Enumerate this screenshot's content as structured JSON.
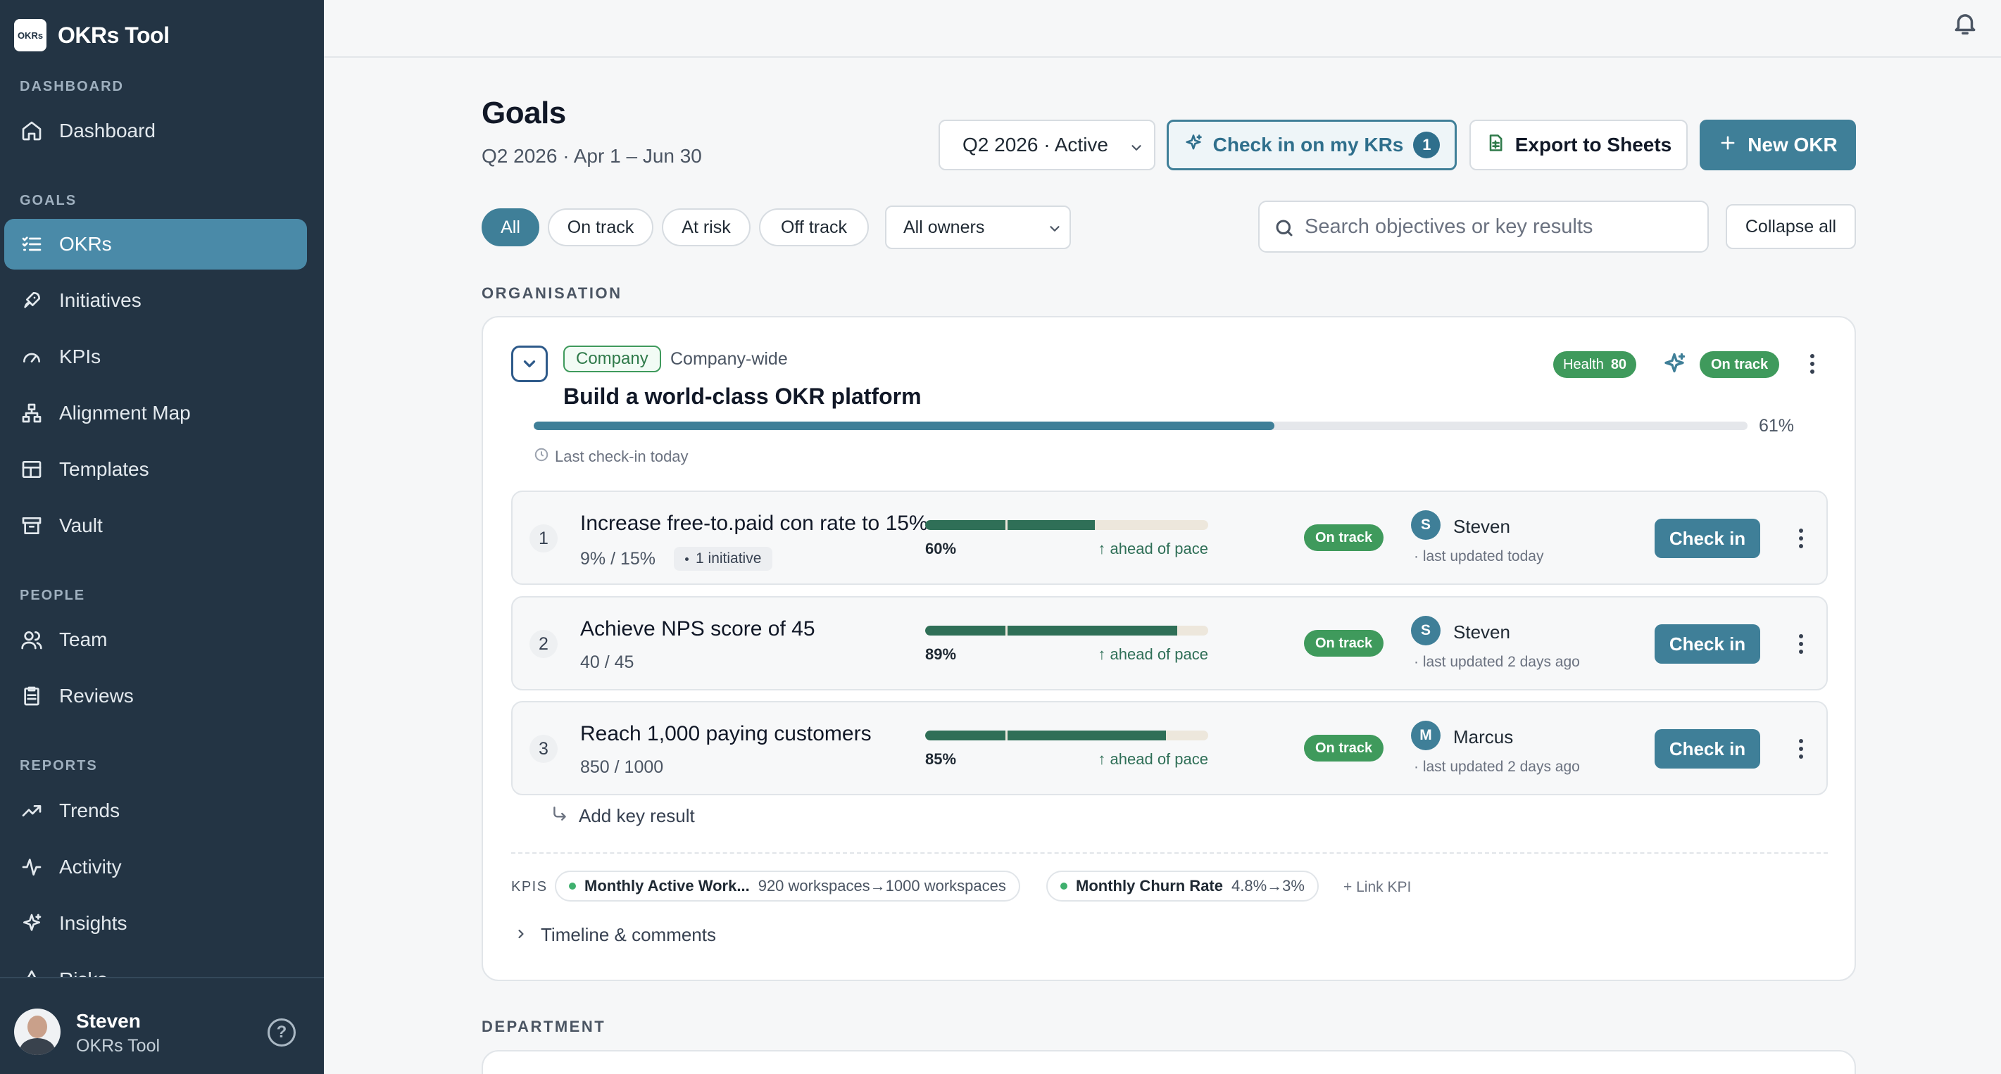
{
  "app": {
    "name": "OKRs Tool",
    "logo_text": "OKRs"
  },
  "sidebar": {
    "sections": [
      {
        "label": "DASHBOARD"
      },
      {
        "label": "GOALS"
      },
      {
        "label": "PEOPLE"
      },
      {
        "label": "REPORTS"
      }
    ],
    "items": [
      {
        "label": "Dashboard",
        "icon": "home-icon"
      },
      {
        "label": "OKRs",
        "icon": "list-icon",
        "active": true
      },
      {
        "label": "Initiatives",
        "icon": "rocket-icon"
      },
      {
        "label": "KPIs",
        "icon": "gauge-icon"
      },
      {
        "label": "Alignment Map",
        "icon": "hierarchy-icon"
      },
      {
        "label": "Templates",
        "icon": "template-icon"
      },
      {
        "label": "Vault",
        "icon": "archive-icon"
      },
      {
        "label": "Team",
        "icon": "team-icon"
      },
      {
        "label": "Reviews",
        "icon": "clipboard-icon"
      },
      {
        "label": "Trends",
        "icon": "trend-icon"
      },
      {
        "label": "Activity",
        "icon": "activity-icon"
      },
      {
        "label": "Insights",
        "icon": "sparkle-icon"
      },
      {
        "label": "Risks",
        "icon": "warning-icon"
      }
    ],
    "user": {
      "name": "Steven",
      "org": "OKRs Tool"
    }
  },
  "header": {
    "title": "Goals",
    "subtitle": "Q2 2026 · Apr 1 – Jun 30",
    "period": "Q2 2026 · Active",
    "checkin_label": "Check in on my KRs",
    "checkin_count": "1",
    "export_label": "Export to Sheets",
    "new_okr_label": "New OKR"
  },
  "filters": {
    "pills": [
      "All",
      "On track",
      "At risk",
      "Off track"
    ],
    "active": "All",
    "owners": "All owners",
    "search_placeholder": "Search objectives or key results",
    "collapse_label": "Collapse all"
  },
  "sections": {
    "organisation": "ORGANISATION",
    "department": "DEPARTMENT"
  },
  "objective": {
    "tag": "Company",
    "scope": "Company-wide",
    "title": "Build a world-class OKR platform",
    "health_label": "Health",
    "health_value": "80",
    "status": "On track",
    "progress": 61,
    "progress_label": "61%",
    "last_checkin": "Last check-in today",
    "key_results": [
      {
        "num": "1",
        "title": "Increase free-to.paid con rate to 15%",
        "values": "9% / 15%",
        "initiatives": "1 initiative",
        "progress": 60,
        "pct": "60%",
        "pace": "↑ ahead of pace",
        "status": "On track",
        "owner_initial": "S",
        "owner": "Steven",
        "updated": "· last updated today",
        "checkin": "Check in"
      },
      {
        "num": "2",
        "title": "Achieve NPS score of 45",
        "values": "40 / 45",
        "initiatives": "",
        "progress": 89,
        "pct": "89%",
        "pace": "↑ ahead of pace",
        "status": "On track",
        "owner_initial": "S",
        "owner": "Steven",
        "updated": "· last updated 2 days ago",
        "checkin": "Check in"
      },
      {
        "num": "3",
        "title": "Reach 1,000 paying customers",
        "values": "850 / 1000",
        "initiatives": "",
        "progress": 85,
        "pct": "85%",
        "pace": "↑ ahead of pace",
        "status": "On track",
        "owner_initial": "M",
        "owner": "Marcus",
        "updated": "· last updated 2 days ago",
        "checkin": "Check in"
      }
    ],
    "add_kr": "Add key result",
    "kpis_label": "KPIS",
    "kpis": [
      {
        "name": "Monthly Active Work...",
        "value": "920 workspaces→1000 workspaces"
      },
      {
        "name": "Monthly Churn Rate",
        "value": "4.8%→3%"
      }
    ],
    "link_kpi": "+ Link KPI",
    "timeline": "Timeline & comments"
  },
  "colors": {
    "sidebar": "#233444",
    "accent": "#3f7f98",
    "success": "#3f9a5c",
    "kr_fill": "#2f6f57"
  }
}
